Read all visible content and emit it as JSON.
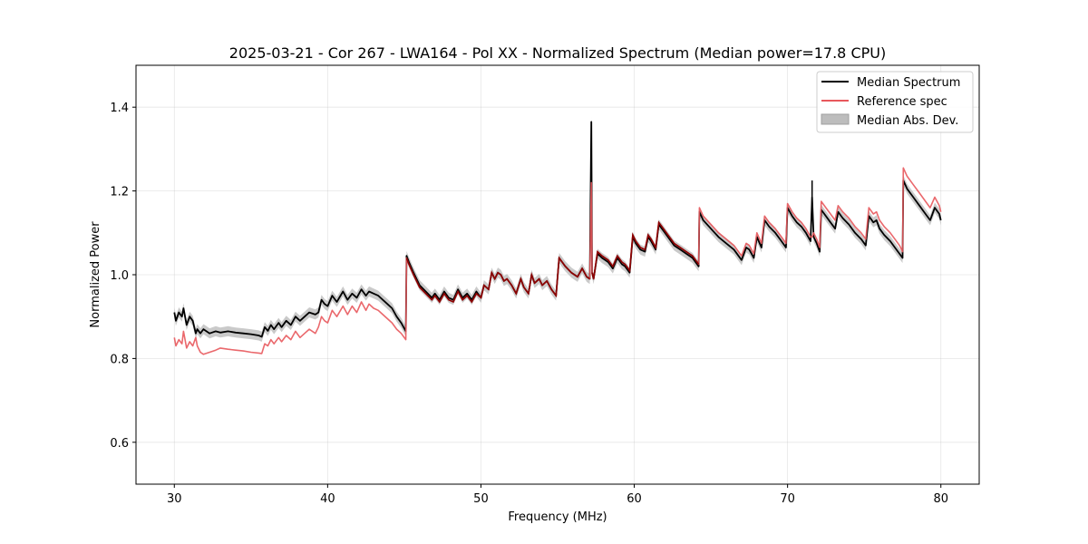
{
  "chart_data": {
    "type": "line",
    "title": "2025-03-21 - Cor 267 - LWA164 - Pol XX - Normalized Spectrum (Median power=17.8 CPU)",
    "xlabel": "Frequency (MHz)",
    "ylabel": "Normalized Power",
    "xlim": [
      27.5,
      82.5
    ],
    "ylim": [
      0.5,
      1.5
    ],
    "xticks": [
      30,
      40,
      50,
      60,
      70,
      80
    ],
    "yticks": [
      0.6,
      0.8,
      1.0,
      1.2,
      1.4
    ],
    "xtick_labels": [
      "30",
      "40",
      "50",
      "60",
      "70",
      "80"
    ],
    "ytick_labels": [
      "0.6",
      "0.8",
      "1.0",
      "1.2",
      "1.4"
    ],
    "grid": true,
    "legend_position": "top-right",
    "legend": [
      "Median Spectrum",
      "Reference spec",
      "Median Abs. Dev."
    ],
    "colors": {
      "median": "#000000",
      "reference": "#e8585c",
      "reference_overlap": "#8b0000",
      "mad_fill": "#bdbdbd"
    },
    "mad_halfwidth": 0.012,
    "series": [
      {
        "name": "Median Spectrum",
        "x": [
          30.0,
          30.1,
          30.3,
          30.5,
          30.6,
          30.8,
          31.0,
          31.2,
          31.4,
          31.5,
          31.7,
          31.9,
          32.3,
          32.7,
          33.0,
          33.5,
          34.0,
          34.5,
          35.0,
          35.5,
          35.7,
          35.9,
          36.1,
          36.3,
          36.5,
          36.8,
          37.0,
          37.3,
          37.6,
          37.9,
          38.2,
          38.5,
          38.8,
          39.2,
          39.4,
          39.6,
          39.8,
          40.0,
          40.3,
          40.6,
          41.0,
          41.3,
          41.6,
          41.9,
          42.2,
          42.5,
          42.7,
          43.0,
          43.3,
          43.6,
          43.9,
          44.2,
          44.5,
          44.8,
          45.1,
          45.15,
          45.3,
          45.6,
          46.0,
          46.4,
          46.8,
          47.0,
          47.3,
          47.6,
          47.9,
          48.2,
          48.5,
          48.8,
          49.1,
          49.4,
          49.7,
          50.0,
          50.2,
          50.5,
          50.7,
          50.9,
          51.1,
          51.3,
          51.5,
          51.7,
          52.0,
          52.3,
          52.6,
          52.8,
          53.1,
          53.3,
          53.5,
          53.8,
          54.0,
          54.3,
          54.6,
          54.9,
          55.1,
          55.5,
          55.9,
          56.3,
          56.6,
          56.9,
          57.1,
          57.2,
          57.25,
          57.35,
          57.6,
          57.9,
          58.1,
          58.3,
          58.6,
          58.9,
          59.2,
          59.4,
          59.7,
          59.9,
          60.1,
          60.4,
          60.7,
          60.9,
          61.1,
          61.4,
          61.6,
          61.9,
          62.2,
          62.6,
          63.0,
          63.4,
          63.8,
          64.2,
          64.25,
          64.5,
          65.0,
          65.5,
          66.0,
          66.5,
          67.0,
          67.3,
          67.5,
          67.8,
          68.0,
          68.3,
          68.5,
          68.8,
          69.2,
          69.6,
          69.9,
          70.0,
          70.3,
          70.6,
          70.9,
          71.2,
          71.5,
          71.6,
          71.7,
          71.9,
          72.1,
          72.2,
          72.5,
          72.8,
          73.1,
          73.3,
          73.6,
          74.0,
          74.4,
          74.8,
          75.1,
          75.3,
          75.6,
          75.8,
          76.0,
          76.3,
          76.7,
          77.0,
          77.3,
          77.5,
          77.55,
          77.8,
          78.2,
          78.6,
          79.0,
          79.3,
          79.6,
          79.9,
          80.0
        ],
        "values": [
          0.91,
          0.89,
          0.91,
          0.9,
          0.92,
          0.88,
          0.9,
          0.89,
          0.86,
          0.87,
          0.86,
          0.87,
          0.86,
          0.865,
          0.862,
          0.865,
          0.862,
          0.86,
          0.858,
          0.855,
          0.852,
          0.875,
          0.866,
          0.88,
          0.87,
          0.885,
          0.875,
          0.89,
          0.88,
          0.9,
          0.89,
          0.9,
          0.91,
          0.905,
          0.91,
          0.94,
          0.93,
          0.925,
          0.95,
          0.935,
          0.96,
          0.94,
          0.955,
          0.945,
          0.965,
          0.95,
          0.96,
          0.955,
          0.95,
          0.94,
          0.93,
          0.92,
          0.9,
          0.885,
          0.865,
          1.045,
          1.03,
          1.005,
          0.975,
          0.96,
          0.945,
          0.955,
          0.94,
          0.96,
          0.945,
          0.94,
          0.965,
          0.945,
          0.955,
          0.94,
          0.96,
          0.945,
          0.975,
          0.965,
          1.005,
          0.99,
          1.005,
          1.0,
          0.985,
          0.99,
          0.975,
          0.955,
          0.99,
          0.97,
          0.955,
          1.0,
          0.98,
          0.99,
          0.975,
          0.985,
          0.965,
          0.95,
          1.04,
          1.02,
          1.005,
          0.995,
          1.015,
          0.995,
          0.99,
          1.365,
          1.005,
          0.99,
          1.05,
          1.04,
          1.035,
          1.03,
          1.015,
          1.04,
          1.025,
          1.02,
          1.005,
          1.09,
          1.075,
          1.06,
          1.055,
          1.09,
          1.08,
          1.06,
          1.12,
          1.105,
          1.09,
          1.07,
          1.06,
          1.05,
          1.04,
          1.02,
          1.15,
          1.13,
          1.11,
          1.09,
          1.075,
          1.06,
          1.035,
          1.065,
          1.06,
          1.04,
          1.09,
          1.065,
          1.13,
          1.115,
          1.1,
          1.08,
          1.065,
          1.16,
          1.14,
          1.125,
          1.115,
          1.1,
          1.08,
          1.185,
          1.09,
          1.075,
          1.055,
          1.155,
          1.14,
          1.125,
          1.11,
          1.15,
          1.135,
          1.12,
          1.1,
          1.085,
          1.07,
          1.14,
          1.125,
          1.13,
          1.11,
          1.095,
          1.08,
          1.065,
          1.05,
          1.04,
          1.225,
          1.205,
          1.185,
          1.165,
          1.145,
          1.13,
          1.16,
          1.145,
          1.13
        ]
      },
      {
        "name": "Reference spec",
        "x": [
          30.0,
          30.1,
          30.3,
          30.5,
          30.6,
          30.8,
          31.0,
          31.2,
          31.4,
          31.5,
          31.7,
          31.9,
          32.3,
          32.7,
          33.0,
          33.5,
          34.0,
          34.5,
          35.0,
          35.5,
          35.7,
          35.9,
          36.1,
          36.3,
          36.5,
          36.8,
          37.0,
          37.3,
          37.6,
          37.9,
          38.2,
          38.5,
          38.8,
          39.2,
          39.4,
          39.6,
          39.8,
          40.0,
          40.3,
          40.6,
          41.0,
          41.3,
          41.6,
          41.9,
          42.2,
          42.5,
          42.7,
          43.0,
          43.3,
          43.6,
          43.9,
          44.2,
          44.5,
          44.8,
          45.1,
          45.15,
          45.3,
          45.6,
          46.0,
          46.4,
          46.8,
          47.0,
          47.3,
          47.6,
          47.9,
          48.2,
          48.5,
          48.8,
          49.1,
          49.4,
          49.7,
          50.0,
          50.2,
          50.5,
          50.7,
          50.9,
          51.1,
          51.3,
          51.5,
          51.7,
          52.0,
          52.3,
          52.6,
          52.8,
          53.1,
          53.3,
          53.5,
          53.8,
          54.0,
          54.3,
          54.6,
          54.9,
          55.1,
          55.5,
          55.9,
          56.3,
          56.6,
          56.9,
          57.1,
          57.2,
          57.25,
          57.35,
          57.6,
          57.9,
          58.1,
          58.3,
          58.6,
          58.9,
          59.2,
          59.4,
          59.7,
          59.9,
          60.1,
          60.4,
          60.7,
          60.9,
          61.1,
          61.4,
          61.6,
          61.9,
          62.2,
          62.6,
          63.0,
          63.4,
          63.8,
          64.2,
          64.25,
          64.5,
          65.0,
          65.5,
          66.0,
          66.5,
          67.0,
          67.3,
          67.5,
          67.8,
          68.0,
          68.3,
          68.5,
          68.8,
          69.2,
          69.6,
          69.9,
          70.0,
          70.3,
          70.6,
          70.9,
          71.2,
          71.5,
          71.6,
          71.7,
          71.9,
          72.1,
          72.2,
          72.5,
          72.8,
          73.1,
          73.3,
          73.6,
          74.0,
          74.4,
          74.8,
          75.1,
          75.3,
          75.6,
          75.8,
          76.0,
          76.3,
          76.7,
          77.0,
          77.3,
          77.5,
          77.55,
          77.8,
          78.2,
          78.6,
          79.0,
          79.3,
          79.6,
          79.9,
          80.0
        ],
        "values": [
          0.85,
          0.83,
          0.845,
          0.835,
          0.865,
          0.825,
          0.84,
          0.83,
          0.85,
          0.83,
          0.815,
          0.81,
          0.815,
          0.82,
          0.825,
          0.822,
          0.82,
          0.818,
          0.815,
          0.813,
          0.812,
          0.835,
          0.83,
          0.845,
          0.835,
          0.85,
          0.84,
          0.855,
          0.845,
          0.865,
          0.85,
          0.86,
          0.87,
          0.86,
          0.875,
          0.9,
          0.89,
          0.885,
          0.915,
          0.9,
          0.925,
          0.905,
          0.925,
          0.91,
          0.935,
          0.915,
          0.93,
          0.92,
          0.915,
          0.905,
          0.895,
          0.885,
          0.87,
          0.86,
          0.845,
          1.04,
          1.025,
          1.0,
          0.97,
          0.955,
          0.94,
          0.95,
          0.935,
          0.955,
          0.94,
          0.935,
          0.96,
          0.94,
          0.95,
          0.935,
          0.955,
          0.945,
          0.975,
          0.965,
          1.005,
          0.99,
          1.005,
          1.0,
          0.985,
          0.99,
          0.975,
          0.955,
          0.99,
          0.97,
          0.955,
          1.0,
          0.98,
          0.99,
          0.975,
          0.985,
          0.965,
          0.95,
          1.04,
          1.02,
          1.005,
          0.995,
          1.015,
          0.995,
          0.99,
          1.22,
          1.005,
          0.99,
          1.055,
          1.045,
          1.04,
          1.035,
          1.02,
          1.045,
          1.03,
          1.025,
          1.01,
          1.095,
          1.08,
          1.065,
          1.06,
          1.095,
          1.085,
          1.065,
          1.125,
          1.11,
          1.095,
          1.075,
          1.065,
          1.055,
          1.045,
          1.025,
          1.16,
          1.14,
          1.12,
          1.1,
          1.085,
          1.07,
          1.045,
          1.075,
          1.07,
          1.05,
          1.1,
          1.075,
          1.14,
          1.125,
          1.11,
          1.09,
          1.075,
          1.17,
          1.15,
          1.135,
          1.125,
          1.11,
          1.09,
          1.09,
          1.1,
          1.085,
          1.065,
          1.175,
          1.16,
          1.145,
          1.13,
          1.165,
          1.15,
          1.135,
          1.115,
          1.1,
          1.085,
          1.16,
          1.145,
          1.15,
          1.13,
          1.115,
          1.1,
          1.085,
          1.07,
          1.055,
          1.255,
          1.235,
          1.215,
          1.195,
          1.175,
          1.16,
          1.185,
          1.165,
          1.15
        ]
      }
    ],
    "spike": {
      "x": 71.6,
      "y_low": 1.16,
      "y_high": 1.225,
      "label": ""
    }
  }
}
